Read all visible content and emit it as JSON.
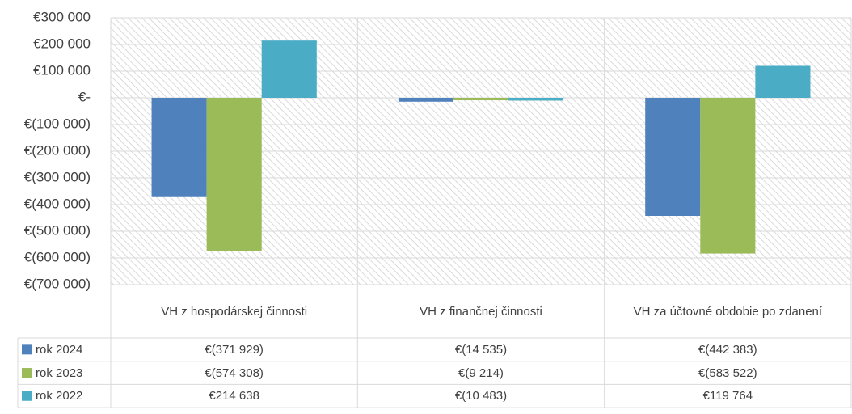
{
  "chart_data": {
    "type": "bar",
    "categories": [
      "VH z hospodárskej činnosti",
      "VH z finančnej činnosti",
      "VH za účtovné obdobie po zdanení"
    ],
    "series": [
      {
        "name": "rok 2024",
        "color": "#4f81bd",
        "values": [
          -371929,
          -14535,
          -442383
        ],
        "value_labels": [
          "€(371 929)",
          "€(14 535)",
          "€(442 383)"
        ]
      },
      {
        "name": "rok 2023",
        "color": "#9bbb59",
        "values": [
          -574308,
          -9214,
          -583522
        ],
        "value_labels": [
          "€(574 308)",
          "€(9 214)",
          "€(583 522)"
        ]
      },
      {
        "name": "rok 2022",
        "color": "#4bacc6",
        "values": [
          214638,
          -10483,
          119764
        ],
        "value_labels": [
          "€214 638",
          "€(10 483)",
          "€119 764"
        ]
      }
    ],
    "ylim": [
      -700000,
      300000
    ],
    "yticks": [
      {
        "value": 300000,
        "label": "€300 000"
      },
      {
        "value": 200000,
        "label": "€200 000"
      },
      {
        "value": 100000,
        "label": "€100 000"
      },
      {
        "value": 0,
        "label": "€-"
      },
      {
        "value": -100000,
        "label": "€(100 000)"
      },
      {
        "value": -200000,
        "label": "€(200 000)"
      },
      {
        "value": -300000,
        "label": "€(300 000)"
      },
      {
        "value": -400000,
        "label": "€(400 000)"
      },
      {
        "value": -500000,
        "label": "€(500 000)"
      },
      {
        "value": -600000,
        "label": "€(600 000)"
      },
      {
        "value": -700000,
        "label": "€(700 000)"
      }
    ],
    "grid": true
  }
}
